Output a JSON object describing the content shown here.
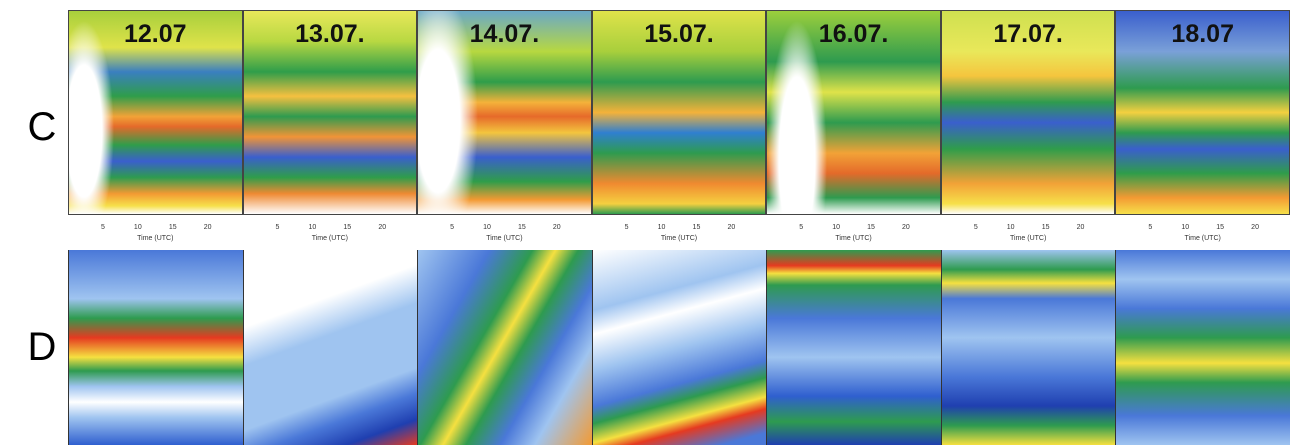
{
  "rows": [
    {
      "label": "C"
    },
    {
      "label": "D"
    }
  ],
  "panels": [
    {
      "date": "12.07",
      "ticks": [
        "5",
        "10",
        "15",
        "20"
      ],
      "axis_label": "Time (UTC)"
    },
    {
      "date": "13.07.",
      "ticks": [
        "5",
        "10",
        "15",
        "20"
      ],
      "axis_label": "Time (UTC)"
    },
    {
      "date": "14.07.",
      "ticks": [
        "5",
        "10",
        "15",
        "20"
      ],
      "axis_label": "Time (UTC)"
    },
    {
      "date": "15.07.",
      "ticks": [
        "5",
        "10",
        "15",
        "20"
      ],
      "axis_label": "Time (UTC)"
    },
    {
      "date": "16.07.",
      "ticks": [
        "5",
        "10",
        "15",
        "20"
      ],
      "axis_label": "Time (UTC)"
    },
    {
      "date": "17.07.",
      "ticks": [
        "5",
        "10",
        "15",
        "20"
      ],
      "axis_label": "Time (UTC)"
    },
    {
      "date": "18.07",
      "ticks": [
        "5",
        "10",
        "15",
        "20"
      ],
      "axis_label": "Time (UTC)"
    }
  ]
}
